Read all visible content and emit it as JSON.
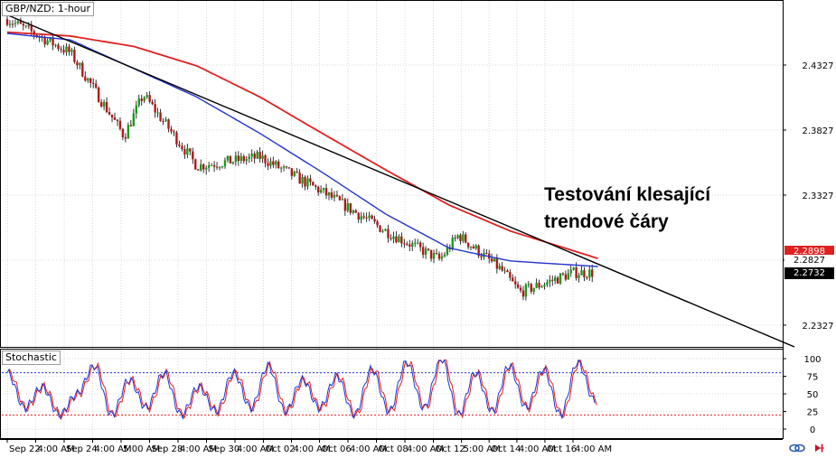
{
  "chart_title": "GBP/NZD: 1-hour",
  "annotation": "Testování klesající\ntrendové čáry",
  "price_axis": {
    "ticks": [
      "2.4327",
      "2.3827",
      "2.3327",
      "2.2827",
      "2.2327"
    ],
    "tick_values": [
      2.4327,
      2.3827,
      2.3327,
      2.2827,
      2.2327
    ],
    "ylim": [
      2.216,
      2.482
    ]
  },
  "price_tags": [
    {
      "label": "2.2898",
      "value": 2.2898,
      "color": "#e02020"
    },
    {
      "label": "2.2827",
      "value": 2.2827,
      "color": "#ffffff"
    },
    {
      "label": "2.2732",
      "value": 2.2732,
      "color": "#000000"
    }
  ],
  "stochastic": {
    "label": "Stochastic",
    "ticks": [
      "100",
      "75",
      "50",
      "25",
      "0"
    ],
    "tick_values": [
      100,
      75,
      50,
      25,
      0
    ],
    "overbought": 80,
    "oversold": 20
  },
  "x_axis": {
    "labels": [
      "Sep 22",
      "4:00 AM",
      "Sep 24",
      "4:00 AM",
      "5:00 AM",
      "Sep 28",
      "4:00 AM",
      "Sep 30",
      "4:00 AM",
      "Oct 02",
      "4:00 AM",
      "Oct 06",
      "4:00 AM",
      "Oct 08",
      "4:00 AM",
      "Oct 12",
      "5:00 AM",
      "Oct 14",
      "4:00 AM",
      "Oct 16",
      "4:00 AM"
    ]
  },
  "colors": {
    "up_candle": "#1a9a1a",
    "down_candle": "#b01818",
    "ma_fast": "#2233cc",
    "ma_slow": "#e02020",
    "trendline": "#000000",
    "stoch_k": "#2233cc",
    "stoch_d": "#e02020"
  },
  "icons": [
    "link-icon",
    "scroll-right-icon"
  ],
  "chart_data": {
    "type": "line",
    "title": "GBP/NZD: 1-hour",
    "x": [
      "Sep 22",
      "Sep 24",
      "Sep 28",
      "Sep 30",
      "Oct 02",
      "Oct 06",
      "Oct 08",
      "Oct 12",
      "Oct 14",
      "Oct 16"
    ],
    "close_path": [
      {
        "x": "Sep 22",
        "y": 2.468
      },
      {
        "x": "Sep 24",
        "y": 2.442
      },
      {
        "x": "Sep 28",
        "y": 2.378
      },
      {
        "x": "Sep 28",
        "y": 2.41
      },
      {
        "x": "Sep 30",
        "y": 2.355
      },
      {
        "x": "Oct 02",
        "y": 2.362
      },
      {
        "x": "Oct 06",
        "y": 2.335
      },
      {
        "x": "Oct 08",
        "y": 2.305
      },
      {
        "x": "Oct 12",
        "y": 2.283
      },
      {
        "x": "Oct 12",
        "y": 2.302
      },
      {
        "x": "Oct 14",
        "y": 2.275
      },
      {
        "x": "Oct 14",
        "y": 2.258
      },
      {
        "x": "Oct 16",
        "y": 2.273
      }
    ],
    "series": [
      {
        "values": [
          2.457,
          2.452,
          2.43,
          2.408,
          2.38,
          2.35,
          2.318,
          2.292,
          2.282,
          2.279
        ]
      },
      {
        "values": [
          2.458,
          2.455,
          2.447,
          2.432,
          2.408,
          2.38,
          2.352,
          2.325,
          2.305,
          2.29
        ]
      }
    ],
    "trendline": [
      {
        "x": "Sep 22",
        "y": 2.473
      },
      {
        "x": "Oct 16",
        "y": 2.279
      }
    ],
    "stochastic_k": [
      80,
      30,
      60,
      20,
      50,
      90,
      20,
      70,
      30,
      80,
      20,
      60,
      25,
      80,
      30,
      90,
      25,
      70,
      30,
      75,
      20,
      85,
      25,
      95,
      30,
      100,
      20,
      80,
      25,
      90,
      30,
      85,
      20,
      95,
      40
    ],
    "ylim": [
      2.216,
      2.482
    ],
    "grid": true,
    "legend": "none"
  }
}
